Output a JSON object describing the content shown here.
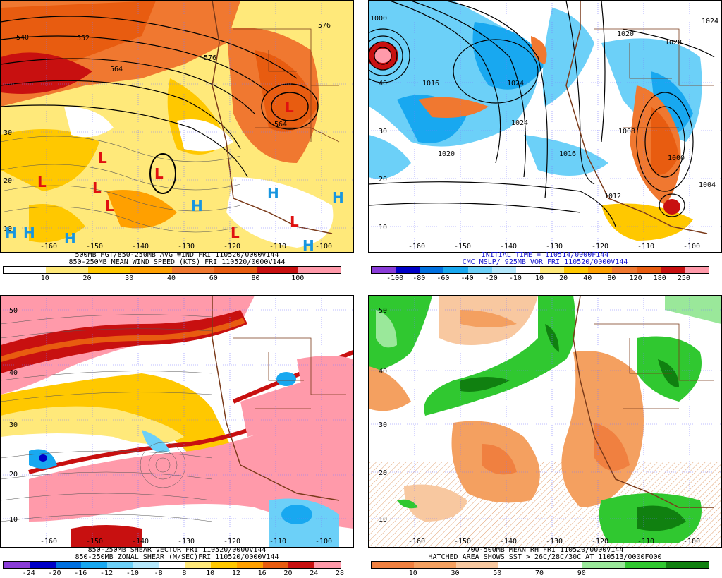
{
  "panels": [
    {
      "id": "tl",
      "caption_line1": "500MB HGT/850-250MB AVG WIND FRI 110520/0000V144",
      "caption_line2": "850-250MB MEAN WIND SPEED (KTS) FRI 110520/0000V144",
      "caption_color": "#000000",
      "colorbar": {
        "colors": [
          "#ffffff",
          "#ffe97a",
          "#ffc800",
          "#ffa000",
          "#f07830",
          "#e85c10",
          "#c81010",
          "#ff9aaa"
        ],
        "labels": [
          "10",
          "20",
          "30",
          "40",
          "60",
          "80",
          "100"
        ]
      },
      "lat_labels": [
        "30",
        "20",
        "10"
      ],
      "lon_labels": [
        "-160",
        "-150",
        "-140",
        "-130",
        "-120",
        "-110",
        "-100"
      ],
      "contour_labels": [
        "540",
        "552",
        "564",
        "576",
        "576",
        "564"
      ],
      "lows": [
        "L",
        "L",
        "L",
        "L",
        "L",
        "L",
        "L",
        "L"
      ],
      "highs": [
        "H",
        "H",
        "H",
        "H",
        "H",
        "H",
        "H"
      ]
    },
    {
      "id": "tr",
      "caption_line1": "INITIAL TIME = 110514/0000F144",
      "caption_line2": "CMC MSLP/ 925MB VOR FRI 110520/0000V144",
      "caption_color": "#1010d0",
      "colorbar": {
        "colors": [
          "#8a3cd8",
          "#0000c8",
          "#0070e0",
          "#18a8f0",
          "#6cd0f8",
          "#b4e8fc",
          "#ffffff",
          "#ffe97a",
          "#ffc800",
          "#ffa000",
          "#f07830",
          "#e85c10",
          "#c81010",
          "#ff9aaa"
        ],
        "labels": [
          "-100",
          "-80",
          "-60",
          "-40",
          "-20",
          "-10",
          "10",
          "20",
          "40",
          "80",
          "120",
          "180",
          "250"
        ]
      },
      "lat_labels": [
        "40",
        "30",
        "20",
        "10"
      ],
      "lon_labels": [
        "-160",
        "-150",
        "-140",
        "-130",
        "-120",
        "-110",
        "-100"
      ],
      "contour_labels": [
        "1000",
        "1016",
        "1024",
        "1024",
        "1020",
        "1016",
        "1012",
        "1020",
        "1028",
        "1008",
        "1000",
        "1004",
        "1024"
      ]
    },
    {
      "id": "bl",
      "caption_line1": "850-250MB SHEAR VECTOR FRI 110520/0000V144",
      "caption_line2": "850-250MB ZONAL SHEAR (M/SEC)FRI 110520/0000V144",
      "caption_color": "#000000",
      "colorbar": {
        "colors": [
          "#8a3cd8",
          "#0000c8",
          "#0070e0",
          "#18a8f0",
          "#6cd0f8",
          "#b4e8fc",
          "#ffffff",
          "#ffe97a",
          "#ffc800",
          "#ffa000",
          "#e85c10",
          "#c81010",
          "#ff9aaa"
        ],
        "labels": [
          "-24",
          "-20",
          "-16",
          "-12",
          "-10",
          "-8",
          "8",
          "10",
          "12",
          "16",
          "20",
          "24",
          "28"
        ]
      },
      "lat_labels": [
        "50",
        "40",
        "30",
        "20",
        "10"
      ],
      "lon_labels": [
        "-160",
        "-150",
        "-140",
        "-130",
        "-120",
        "-110",
        "-100"
      ]
    },
    {
      "id": "br",
      "caption_line1": "700-500MB MEAN RH FRI 110520/0000V144",
      "caption_line2": "HATCHED AREA SHOWS SST > 26C/28C/30C AT 110513/0000F000",
      "caption_color": "#000000",
      "colorbar": {
        "colors": [
          "#f08040",
          "#f4a060",
          "#f8c8a0",
          "#ffffff",
          "#ffffff",
          "#9ae89a",
          "#30c830",
          "#108010"
        ],
        "labels": [
          "10",
          "30",
          "50",
          "70",
          "90"
        ]
      },
      "lat_labels": [
        "50",
        "40",
        "30",
        "20",
        "10"
      ],
      "lon_labels": [
        "-160",
        "-150",
        "-140",
        "-130",
        "-120",
        "-110",
        "-100"
      ]
    }
  ]
}
